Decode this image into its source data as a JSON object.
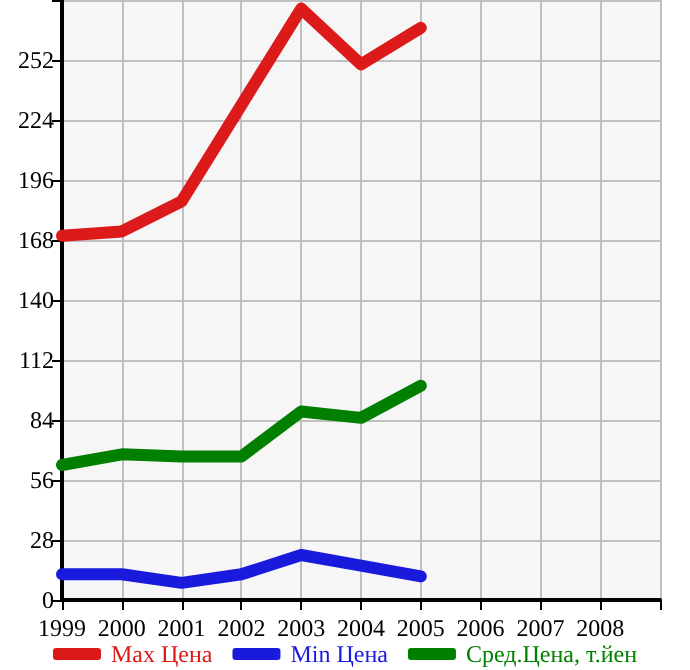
{
  "chart_data": {
    "type": "line",
    "x": [
      1999,
      2000,
      2001,
      2002,
      2003,
      2004,
      2005
    ],
    "series": [
      {
        "name": "Max Цена",
        "color": "#dd1a1a",
        "values": [
          170,
          172,
          186,
          231,
          276,
          250,
          267
        ]
      },
      {
        "name": "Min Цена",
        "color": "#1a1add",
        "values": [
          12,
          12,
          8,
          12,
          21,
          16,
          11
        ]
      },
      {
        "name": "Сред.Цена, т.йен",
        "color": "#007f00",
        "values": [
          63,
          68,
          67,
          67,
          88,
          85,
          100
        ]
      }
    ],
    "xlim": [
      1999,
      2009
    ],
    "xticks": [
      1999,
      2000,
      2001,
      2002,
      2003,
      2004,
      2005,
      2006,
      2007,
      2008,
      {
        "value": 2009,
        "label": null
      }
    ],
    "ylim": [
      0,
      280
    ],
    "yticks": [
      0,
      28,
      56,
      84,
      112,
      140,
      168,
      196,
      224,
      252,
      {
        "value": 280,
        "label": null
      }
    ],
    "grid": true,
    "legend": "bottom",
    "marker": "none",
    "line_style": "solid"
  }
}
